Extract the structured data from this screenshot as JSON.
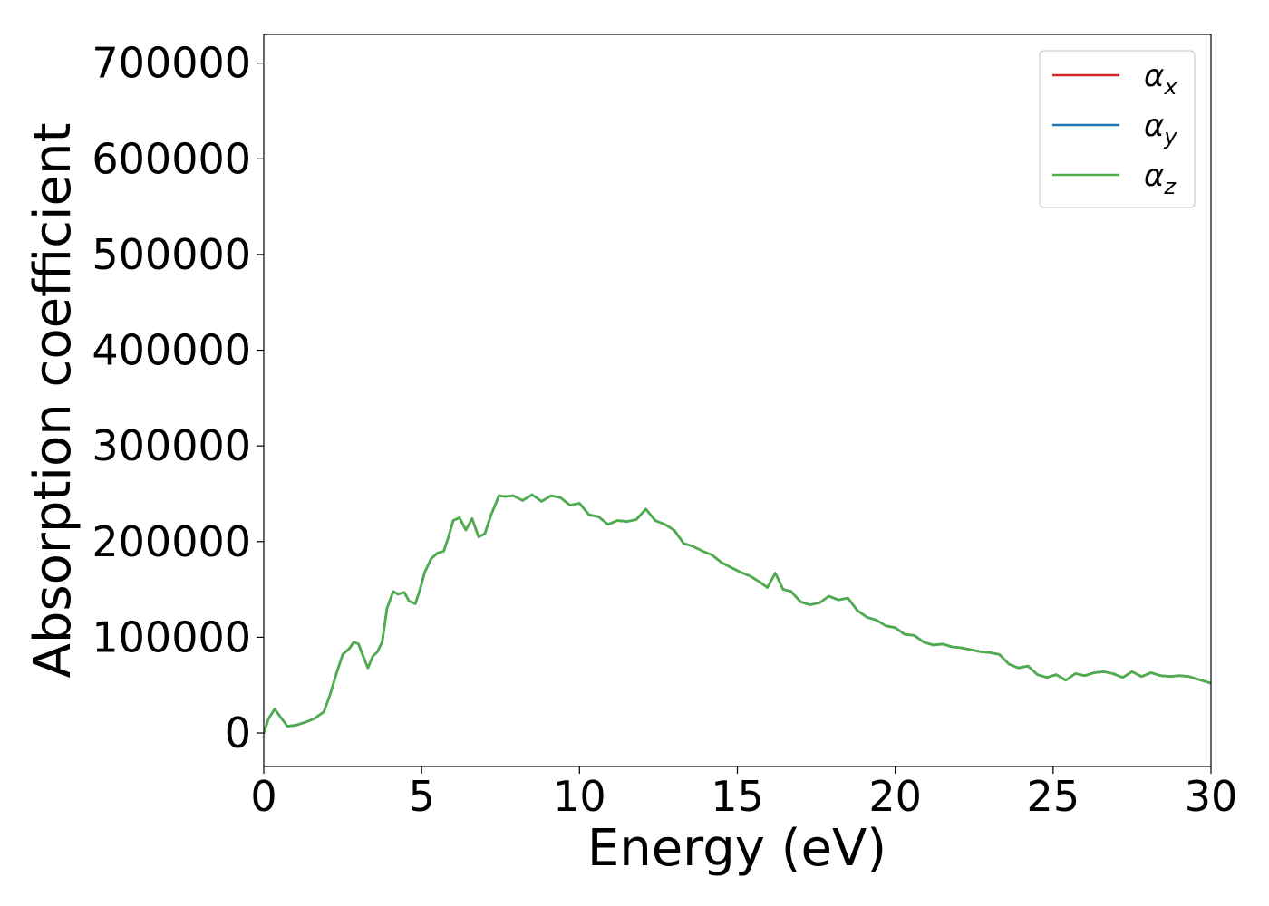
{
  "chart_data": {
    "type": "line",
    "xlabel": "Energy (eV)",
    "ylabel": "Absorption coefficient",
    "xlim": [
      0,
      30
    ],
    "ylim": [
      -35000,
      730000
    ],
    "x_ticks": [
      0,
      5,
      10,
      15,
      20,
      25,
      30
    ],
    "x_tick_labels": [
      "0",
      "5",
      "10",
      "15",
      "20",
      "25",
      "30"
    ],
    "y_ticks": [
      0,
      100000,
      200000,
      300000,
      400000,
      500000,
      600000,
      700000
    ],
    "y_tick_labels": [
      "0",
      "100000",
      "200000",
      "300000",
      "400000",
      "500000",
      "600000",
      "700000"
    ],
    "grid": false,
    "legend_position": "top-right",
    "x": [
      0,
      0.15,
      0.35,
      0.5,
      0.75,
      1.0,
      1.3,
      1.6,
      1.9,
      2.1,
      2.3,
      2.5,
      2.7,
      2.85,
      3.0,
      3.15,
      3.3,
      3.45,
      3.6,
      3.75,
      3.9,
      4.1,
      4.25,
      4.45,
      4.6,
      4.8,
      4.95,
      5.1,
      5.3,
      5.5,
      5.7,
      5.85,
      6.0,
      6.2,
      6.4,
      6.6,
      6.8,
      7.0,
      7.2,
      7.45,
      7.65,
      7.9,
      8.2,
      8.5,
      8.8,
      9.1,
      9.4,
      9.7,
      10.0,
      10.3,
      10.6,
      10.9,
      11.2,
      11.5,
      11.8,
      12.1,
      12.4,
      12.7,
      13.0,
      13.3,
      13.6,
      13.9,
      14.2,
      14.5,
      14.8,
      15.1,
      15.4,
      15.7,
      15.95,
      16.2,
      16.45,
      16.7,
      17.0,
      17.3,
      17.6,
      17.9,
      18.2,
      18.5,
      18.8,
      19.1,
      19.4,
      19.7,
      20.0,
      20.3,
      20.6,
      20.9,
      21.2,
      21.5,
      21.8,
      22.1,
      22.4,
      22.7,
      23.0,
      23.3,
      23.6,
      23.9,
      24.2,
      24.5,
      24.8,
      25.1,
      25.4,
      25.7,
      26.0,
      26.3,
      26.6,
      26.9,
      27.2,
      27.5,
      27.8,
      28.1,
      28.4,
      28.7,
      29.0,
      29.3,
      29.6,
      30.0
    ],
    "series": [
      {
        "name": "α_x",
        "color": "#d62728",
        "values": [
          0,
          15000,
          25000,
          18000,
          7000,
          8000,
          11000,
          15000,
          22000,
          40000,
          62000,
          82000,
          88000,
          95000,
          93000,
          80000,
          68000,
          80000,
          85000,
          95000,
          130000,
          148000,
          145000,
          147000,
          138000,
          135000,
          150000,
          168000,
          182000,
          188000,
          190000,
          205000,
          222000,
          225000,
          212000,
          224000,
          205000,
          208000,
          228000,
          248000,
          247000,
          248000,
          243000,
          249000,
          242000,
          248000,
          246000,
          238000,
          240000,
          228000,
          226000,
          218000,
          222000,
          221000,
          223000,
          234000,
          222000,
          218000,
          212000,
          198000,
          195000,
          190000,
          186000,
          178000,
          173000,
          168000,
          164000,
          158000,
          152000,
          167000,
          150000,
          148000,
          137000,
          134000,
          136000,
          143000,
          139000,
          141000,
          128000,
          121000,
          118000,
          112000,
          110000,
          103000,
          102000,
          95000,
          92000,
          93000,
          90000,
          89000,
          87000,
          85000,
          84000,
          82000,
          72000,
          68000,
          70000,
          61000,
          58000,
          61000,
          55000,
          62000,
          60000,
          63000,
          64000,
          62000,
          58000,
          64000,
          59000,
          63000,
          60000,
          59000,
          60000,
          59000,
          56000,
          52000
        ]
      },
      {
        "name": "α_y",
        "color": "#1f77b4",
        "values": [
          0,
          15000,
          25000,
          18000,
          7000,
          8000,
          11000,
          15000,
          22000,
          40000,
          62000,
          82000,
          88000,
          95000,
          93000,
          80000,
          68000,
          80000,
          85000,
          95000,
          130000,
          148000,
          145000,
          147000,
          138000,
          135000,
          150000,
          168000,
          182000,
          188000,
          190000,
          205000,
          222000,
          225000,
          212000,
          224000,
          205000,
          208000,
          228000,
          248000,
          247000,
          248000,
          243000,
          249000,
          242000,
          248000,
          246000,
          238000,
          240000,
          228000,
          226000,
          218000,
          222000,
          221000,
          223000,
          234000,
          222000,
          218000,
          212000,
          198000,
          195000,
          190000,
          186000,
          178000,
          173000,
          168000,
          164000,
          158000,
          152000,
          167000,
          150000,
          148000,
          137000,
          134000,
          136000,
          143000,
          139000,
          141000,
          128000,
          121000,
          118000,
          112000,
          110000,
          103000,
          102000,
          95000,
          92000,
          93000,
          90000,
          89000,
          87000,
          85000,
          84000,
          82000,
          72000,
          68000,
          70000,
          61000,
          58000,
          61000,
          55000,
          62000,
          60000,
          63000,
          64000,
          62000,
          58000,
          64000,
          59000,
          63000,
          60000,
          59000,
          60000,
          59000,
          56000,
          52000
        ]
      },
      {
        "name": "α_z",
        "color": "#4daf4a",
        "values": [
          0,
          15000,
          25000,
          18000,
          7000,
          8000,
          11000,
          15000,
          22000,
          40000,
          62000,
          82000,
          88000,
          95000,
          93000,
          80000,
          68000,
          80000,
          85000,
          95000,
          130000,
          148000,
          145000,
          147000,
          138000,
          135000,
          150000,
          168000,
          182000,
          188000,
          190000,
          205000,
          222000,
          225000,
          212000,
          224000,
          205000,
          208000,
          228000,
          248000,
          247000,
          248000,
          243000,
          249000,
          242000,
          248000,
          246000,
          238000,
          240000,
          228000,
          226000,
          218000,
          222000,
          221000,
          223000,
          234000,
          222000,
          218000,
          212000,
          198000,
          195000,
          190000,
          186000,
          178000,
          173000,
          168000,
          164000,
          158000,
          152000,
          167000,
          150000,
          148000,
          137000,
          134000,
          136000,
          143000,
          139000,
          141000,
          128000,
          121000,
          118000,
          112000,
          110000,
          103000,
          102000,
          95000,
          92000,
          93000,
          90000,
          89000,
          87000,
          85000,
          84000,
          82000,
          72000,
          68000,
          70000,
          61000,
          58000,
          61000,
          55000,
          62000,
          60000,
          63000,
          64000,
          62000,
          58000,
          64000,
          59000,
          63000,
          60000,
          59000,
          60000,
          59000,
          56000,
          52000
        ]
      }
    ],
    "legend": [
      {
        "symbol": "α",
        "subscript": "x",
        "color": "#d62728"
      },
      {
        "symbol": "α",
        "subscript": "y",
        "color": "#1f77b4"
      },
      {
        "symbol": "α",
        "subscript": "z",
        "color": "#4daf4a"
      }
    ]
  }
}
